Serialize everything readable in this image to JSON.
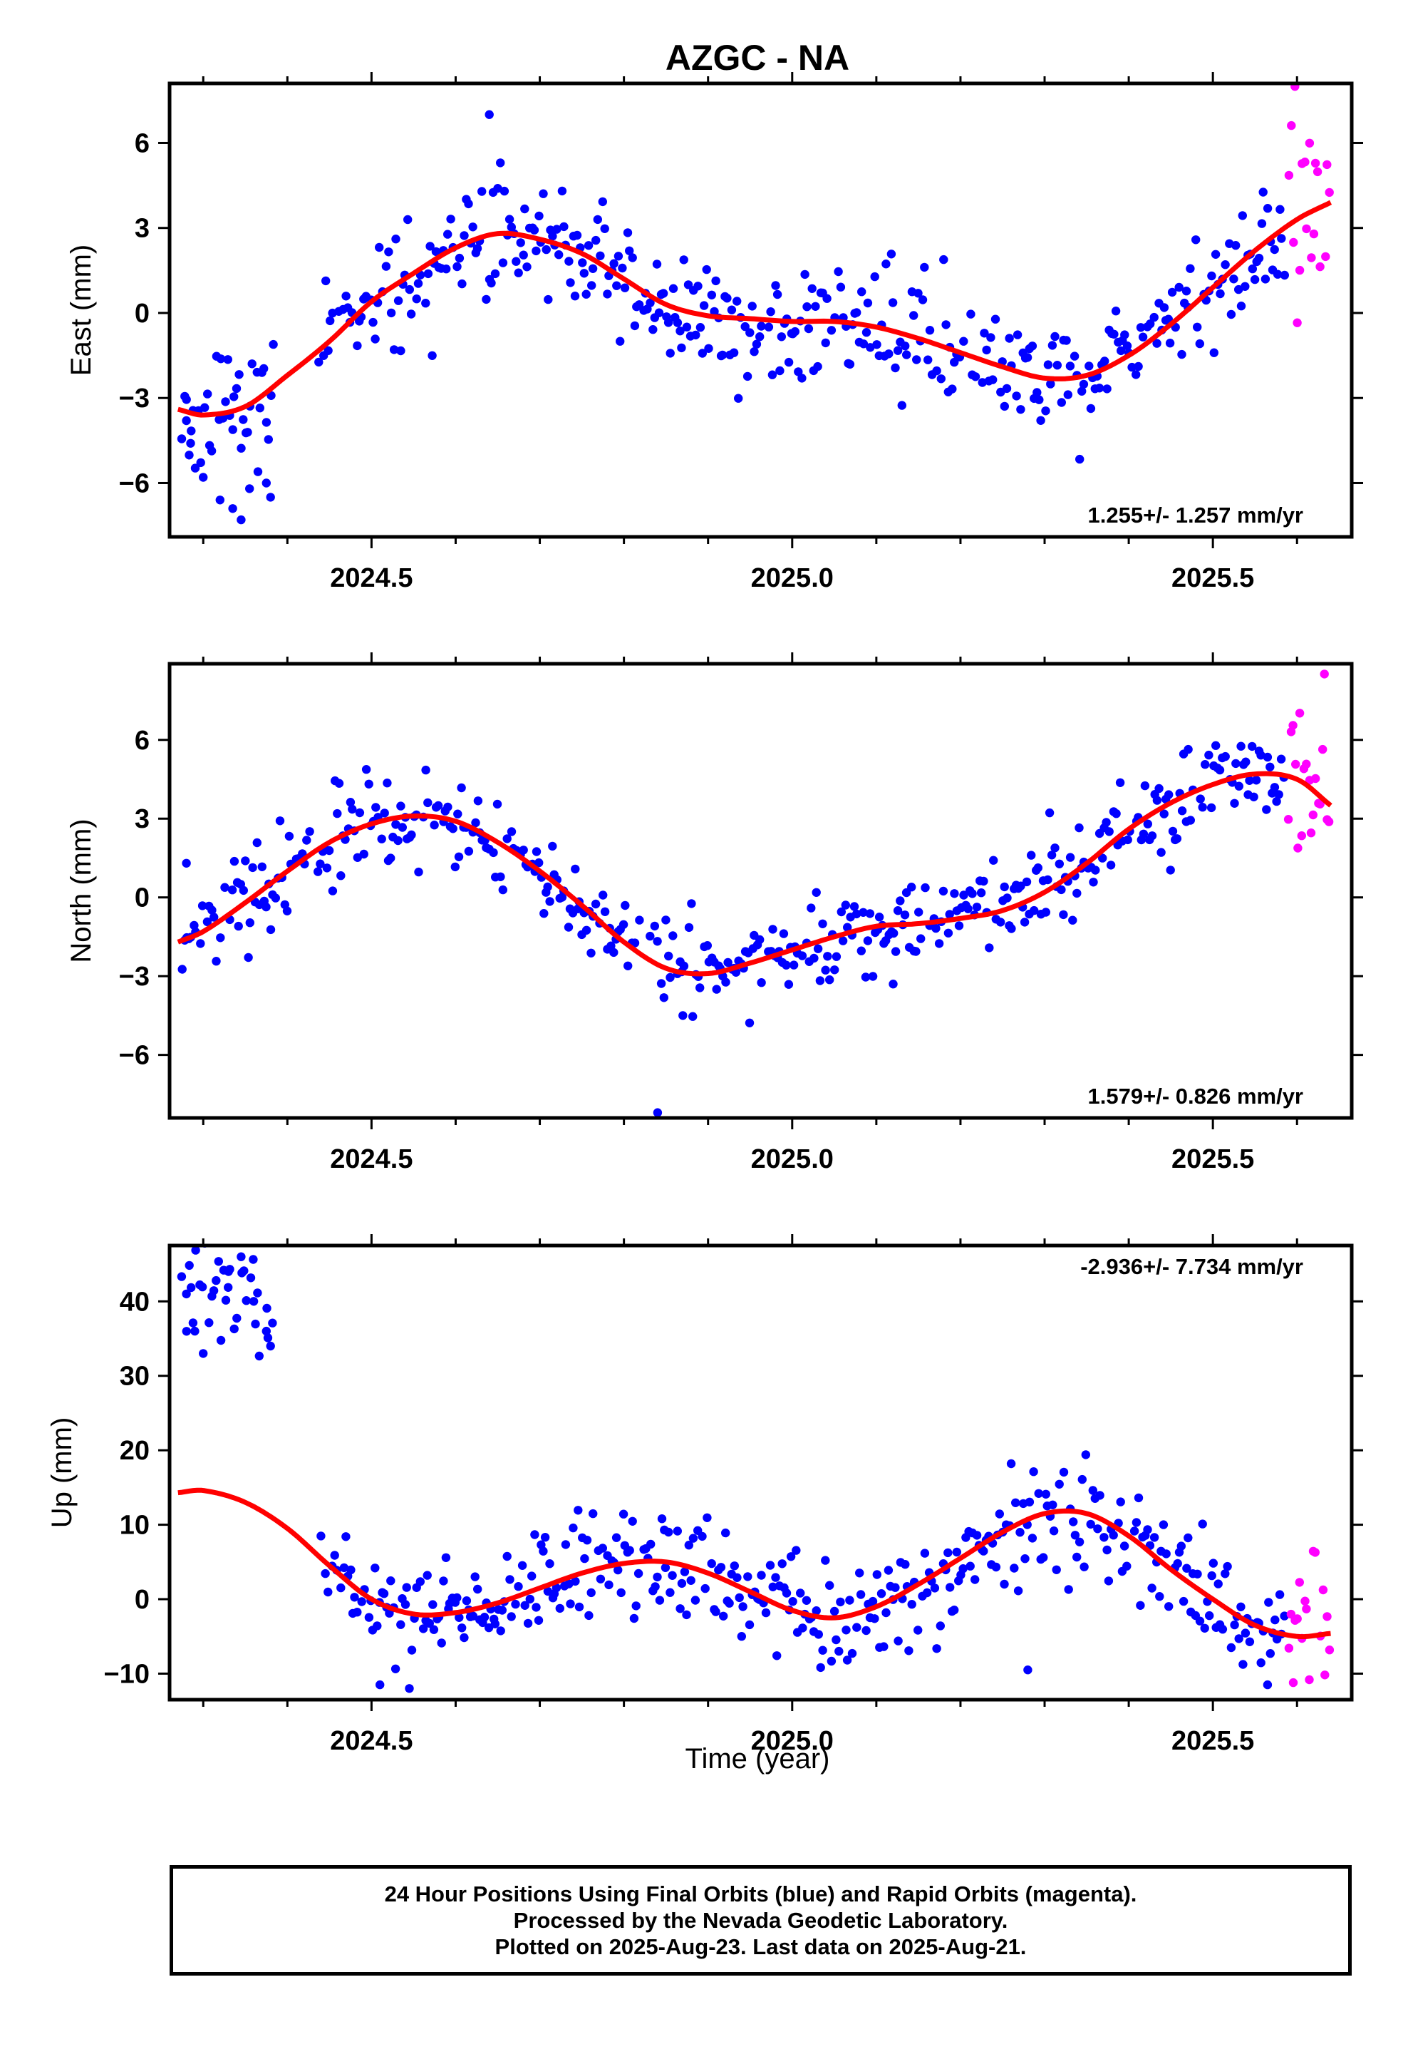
{
  "title": "AZGC - NA",
  "colors": {
    "final": "#0000ff",
    "rapid": "#ff00ff",
    "model": "#ff0000",
    "frame": "#000000"
  },
  "xlabel": "Time (year)",
  "footer": [
    "24 Hour Positions Using Final Orbits (blue) and Rapid Orbits (magenta).",
    "Processed by the Nevada Geodetic Laboratory.",
    "Plotted on 2025-Aug-23. Last data on 2025-Aug-21."
  ],
  "chart_data": [
    {
      "type": "scatter",
      "ylabel": "East (mm)",
      "rate": "1.255+/- 1.257 mm/yr",
      "xlim": [
        2024.26,
        2025.665
      ],
      "ylim": [
        -7.9,
        8.1
      ],
      "xticks": [
        2024.5,
        2025.0,
        2025.5
      ],
      "xtick_labels": [
        "2024.5",
        "2025.0",
        "2025.5"
      ],
      "yticks": [
        -6,
        -3,
        0,
        3,
        6
      ],
      "ytick_labels": [
        "−6",
        "−3",
        "0",
        "3",
        "6"
      ],
      "model_knots": [
        [
          2024.27,
          -3.4
        ],
        [
          2024.3,
          -3.6
        ],
        [
          2024.35,
          -3.3
        ],
        [
          2024.4,
          -2.2
        ],
        [
          2024.45,
          -1.0
        ],
        [
          2024.5,
          0.4
        ],
        [
          2024.55,
          1.4
        ],
        [
          2024.6,
          2.3
        ],
        [
          2024.65,
          2.8
        ],
        [
          2024.7,
          2.6
        ],
        [
          2024.75,
          2.1
        ],
        [
          2024.8,
          1.2
        ],
        [
          2024.85,
          0.3
        ],
        [
          2024.9,
          -0.1
        ],
        [
          2024.95,
          -0.2
        ],
        [
          2025.0,
          -0.3
        ],
        [
          2025.05,
          -0.3
        ],
        [
          2025.1,
          -0.5
        ],
        [
          2025.15,
          -0.9
        ],
        [
          2025.2,
          -1.4
        ],
        [
          2025.25,
          -1.9
        ],
        [
          2025.3,
          -2.3
        ],
        [
          2025.35,
          -2.2
        ],
        [
          2025.4,
          -1.5
        ],
        [
          2025.45,
          -0.4
        ],
        [
          2025.5,
          0.9
        ],
        [
          2025.55,
          2.2
        ],
        [
          2025.6,
          3.3
        ],
        [
          2025.64,
          3.9
        ]
      ],
      "series": [
        {
          "name": "final",
          "seed": 11,
          "noise": 1.05,
          "x_start": 2024.275,
          "x_end": 2025.585,
          "gap": [
            2024.385,
            2024.435
          ],
          "overrides": [
            [
              2024.28,
              -3.8
            ],
            [
              2024.285,
              -4.6
            ],
            [
              2024.3,
              -5.8
            ],
            [
              2024.32,
              -6.6
            ],
            [
              2024.335,
              -6.9
            ],
            [
              2024.345,
              -7.3
            ],
            [
              2024.355,
              -6.2
            ],
            [
              2024.365,
              -5.6
            ],
            [
              2024.375,
              -6.0
            ],
            [
              2024.38,
              -6.5
            ],
            [
              2024.64,
              7.0
            ]
          ]
        },
        {
          "name": "rapid",
          "seed": 57,
          "noise": 2.4,
          "x_start": 2025.59,
          "x_end": 2025.64
        }
      ]
    },
    {
      "type": "scatter",
      "ylabel": "North (mm)",
      "rate": "1.579+/- 0.826 mm/yr",
      "xlim": [
        2024.26,
        2025.665
      ],
      "ylim": [
        -8.4,
        8.9
      ],
      "xticks": [
        2024.5,
        2025.0,
        2025.5
      ],
      "xtick_labels": [
        "2024.5",
        "2025.0",
        "2025.5"
      ],
      "yticks": [
        -6,
        -3,
        0,
        3,
        6
      ],
      "ytick_labels": [
        "−6",
        "−3",
        "0",
        "3",
        "6"
      ],
      "model_knots": [
        [
          2024.27,
          -1.7
        ],
        [
          2024.3,
          -1.3
        ],
        [
          2024.35,
          -0.2
        ],
        [
          2024.4,
          1.0
        ],
        [
          2024.45,
          2.1
        ],
        [
          2024.5,
          2.8
        ],
        [
          2024.55,
          3.1
        ],
        [
          2024.6,
          2.9
        ],
        [
          2024.65,
          2.1
        ],
        [
          2024.7,
          1.0
        ],
        [
          2024.75,
          -0.3
        ],
        [
          2024.8,
          -1.7
        ],
        [
          2024.85,
          -2.7
        ],
        [
          2024.9,
          -2.9
        ],
        [
          2024.95,
          -2.5
        ],
        [
          2025.0,
          -2.0
        ],
        [
          2025.05,
          -1.5
        ],
        [
          2025.1,
          -1.1
        ],
        [
          2025.15,
          -1.0
        ],
        [
          2025.2,
          -0.8
        ],
        [
          2025.25,
          -0.5
        ],
        [
          2025.3,
          0.2
        ],
        [
          2025.35,
          1.3
        ],
        [
          2025.4,
          2.6
        ],
        [
          2025.45,
          3.6
        ],
        [
          2025.5,
          4.3
        ],
        [
          2025.55,
          4.7
        ],
        [
          2025.6,
          4.5
        ],
        [
          2025.64,
          3.5
        ]
      ],
      "series": [
        {
          "name": "final",
          "seed": 23,
          "noise": 0.85,
          "x_start": 2024.275,
          "x_end": 2025.585,
          "gap": [
            2024.82,
            2024.83
          ],
          "overrides": [
            [
              2024.28,
              1.3
            ],
            [
              2024.84,
              -8.2
            ],
            [
              2024.87,
              -4.5
            ],
            [
              2025.12,
              -3.3
            ]
          ]
        },
        {
          "name": "rapid",
          "seed": 71,
          "noise": 2.2,
          "x_start": 2025.59,
          "x_end": 2025.64
        }
      ]
    },
    {
      "type": "scatter",
      "ylabel": "Up (mm)",
      "rate": "-2.936+/- 7.734 mm/yr",
      "xlim": [
        2024.26,
        2025.665
      ],
      "ylim": [
        -13.5,
        47.5
      ],
      "xticks": [
        2024.5,
        2025.0,
        2025.5
      ],
      "xtick_labels": [
        "2024.5",
        "2025.0",
        "2025.5"
      ],
      "yticks": [
        -10,
        0,
        10,
        20,
        30,
        40
      ],
      "ytick_labels": [
        "−10",
        "0",
        "10",
        "20",
        "30",
        "40"
      ],
      "model_knots": [
        [
          2024.27,
          14.3
        ],
        [
          2024.3,
          14.6
        ],
        [
          2024.35,
          13.0
        ],
        [
          2024.4,
          9.5
        ],
        [
          2024.45,
          4.5
        ],
        [
          2024.5,
          0.0
        ],
        [
          2024.55,
          -2.0
        ],
        [
          2024.6,
          -1.8
        ],
        [
          2024.65,
          -0.5
        ],
        [
          2024.7,
          1.5
        ],
        [
          2024.75,
          3.5
        ],
        [
          2024.8,
          4.8
        ],
        [
          2024.85,
          5.0
        ],
        [
          2024.9,
          3.5
        ],
        [
          2024.95,
          1.0
        ],
        [
          2025.0,
          -1.5
        ],
        [
          2025.05,
          -2.5
        ],
        [
          2025.1,
          -1.0
        ],
        [
          2025.15,
          2.0
        ],
        [
          2025.2,
          5.5
        ],
        [
          2025.25,
          9.0
        ],
        [
          2025.3,
          11.5
        ],
        [
          2025.35,
          11.5
        ],
        [
          2025.4,
          8.5
        ],
        [
          2025.45,
          4.0
        ],
        [
          2025.5,
          0.0
        ],
        [
          2025.55,
          -3.5
        ],
        [
          2025.6,
          -5.0
        ],
        [
          2025.64,
          -4.6
        ]
      ],
      "series": [
        {
          "name": "final",
          "seed": 37,
          "noise": 3.6,
          "x_start": 2024.275,
          "x_end": 2025.585,
          "gap": [
            2024.385,
            2024.435
          ],
          "offset_before_gap": 27,
          "overrides": [
            [
              2024.28,
              41.0
            ],
            [
              2024.29,
              36.0
            ],
            [
              2024.3,
              33.0
            ],
            [
              2024.33,
              44.0
            ],
            [
              2024.345,
              46.0
            ],
            [
              2024.36,
              40.0
            ],
            [
              2024.375,
              36.0
            ],
            [
              2024.38,
              34.0
            ],
            [
              2024.51,
              -11.5
            ],
            [
              2024.545,
              -12.0
            ],
            [
              2025.28,
              -9.5
            ],
            [
              2025.565,
              -11.5
            ]
          ]
        },
        {
          "name": "rapid",
          "seed": 83,
          "noise": 4.5,
          "x_start": 2025.59,
          "x_end": 2025.64
        }
      ]
    }
  ]
}
